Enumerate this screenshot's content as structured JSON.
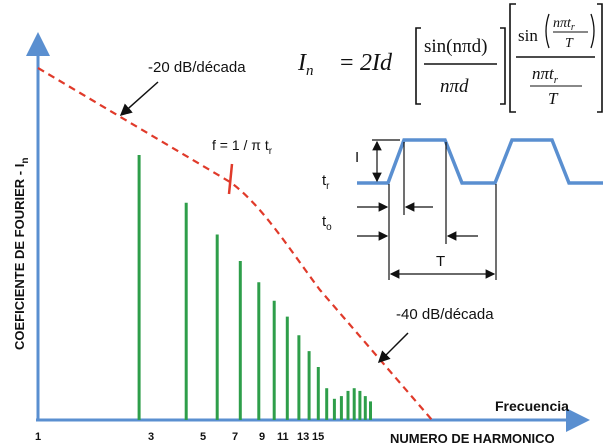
{
  "formula": {
    "lhs": "I",
    "lhs_sub": "n",
    "equals": "=",
    "coef": "2Id",
    "frac1_num": "sin(nπd)",
    "frac1_den": "nπd",
    "frac2_num_sin": "sin",
    "frac2_num_inner": "nπt",
    "frac2_num_inner_sub": "r",
    "frac2_num_inner_den": "T",
    "frac2_den": "nπt",
    "frac2_den_sub": "r",
    "frac2_den_den": "T"
  },
  "labels": {
    "slope1": "-20 dB/década",
    "slope2": "-40 dB/década",
    "corner_f": "f = 1 / π t",
    "corner_f_sub": "r",
    "y_axis": "COEFICIENTE DE FOURIER - I",
    "y_axis_sub": "n",
    "x_axis": "Frecuencia",
    "x_axis_title": "NUMERO DE HARMONICO"
  },
  "waveform": {
    "amplitude_label": "I",
    "rise_label": "t",
    "rise_sub": "r",
    "on_label": "t",
    "on_sub": "o",
    "period_label": "T"
  },
  "x_ticks": [
    "1",
    "3",
    "5",
    "7",
    "9",
    "11",
    "13",
    "15"
  ],
  "colors": {
    "axis": "#5a8fd0",
    "harmonic": "#2e9e4a",
    "envelope": "#e03a2a",
    "waveform": "#5a8fd0",
    "text": "#111111"
  },
  "chart_data": {
    "type": "bar",
    "x_scale": "log",
    "y_scale": "log",
    "harmonics": [
      3,
      5,
      7,
      9,
      11,
      13,
      15,
      17,
      19,
      21,
      23,
      25,
      27,
      29,
      31,
      33,
      35,
      37
    ],
    "relative_amplitude": [
      1.0,
      0.82,
      0.7,
      0.6,
      0.52,
      0.45,
      0.39,
      0.32,
      0.26,
      0.2,
      0.12,
      0.08,
      0.09,
      0.11,
      0.12,
      0.11,
      0.09,
      0.07
    ],
    "envelope_slopes_db_per_decade": [
      -20,
      -40
    ]
  }
}
